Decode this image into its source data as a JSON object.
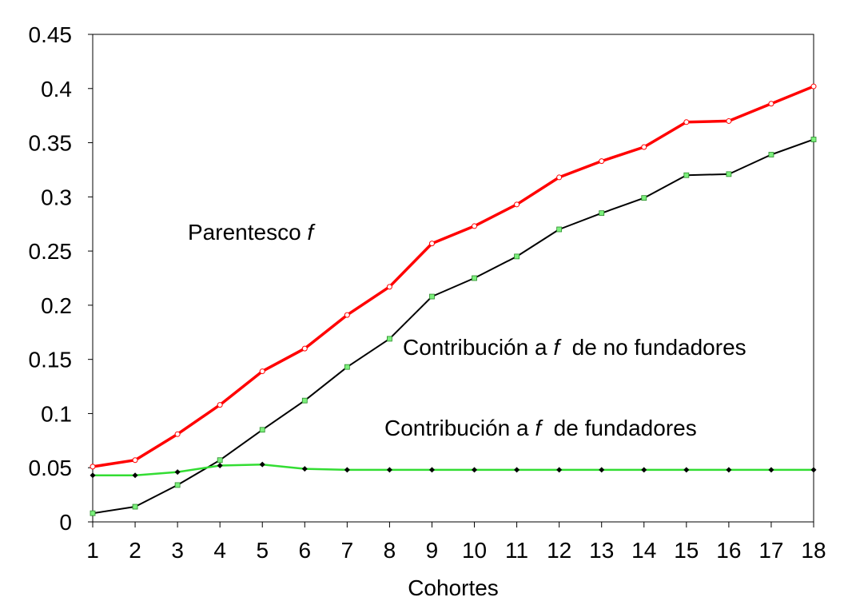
{
  "chart_data": {
    "type": "line",
    "xlabel": "Cohortes",
    "ylabel": "",
    "x": [
      1,
      2,
      3,
      4,
      5,
      6,
      7,
      8,
      9,
      10,
      11,
      12,
      13,
      14,
      15,
      16,
      17,
      18
    ],
    "ylim": [
      0,
      0.45
    ],
    "yticks": [
      "0",
      "0.05",
      "0.1",
      "0.15",
      "0.2",
      "0.25",
      "0.3",
      "0.35",
      "0.4",
      "0.45"
    ],
    "grid": false,
    "series": [
      {
        "id": "parentesco",
        "values": [
          0.051,
          0.057,
          0.081,
          0.108,
          0.139,
          0.16,
          0.191,
          0.217,
          0.257,
          0.273,
          0.293,
          0.318,
          0.333,
          0.346,
          0.369,
          0.37,
          0.386,
          0.402
        ],
        "line_color": "#ff0000",
        "marker_color": "#ffffff",
        "marker": "circle"
      },
      {
        "id": "no_fundadores",
        "values": [
          0.008,
          0.014,
          0.034,
          0.057,
          0.085,
          0.112,
          0.143,
          0.169,
          0.208,
          0.225,
          0.245,
          0.27,
          0.285,
          0.299,
          0.32,
          0.321,
          0.339,
          0.353
        ],
        "line_color": "#000000",
        "marker_color": "#7cf07c",
        "marker": "square"
      },
      {
        "id": "fundadores",
        "values": [
          0.043,
          0.043,
          0.046,
          0.052,
          0.053,
          0.049,
          0.048,
          0.048,
          0.048,
          0.048,
          0.048,
          0.048,
          0.048,
          0.048,
          0.048,
          0.048,
          0.048,
          0.048
        ],
        "line_color": "#33dd33",
        "marker_color": "#000000",
        "marker": "diamond"
      }
    ],
    "annotations": [
      {
        "text": "Parentesco ",
        "italic": "f",
        "tail": ""
      },
      {
        "text": "Contribución a ",
        "italic": "f",
        "tail": "  de no fundadores"
      },
      {
        "text": "Contribución a ",
        "italic": "f",
        "tail": "  de fundadores"
      }
    ]
  }
}
